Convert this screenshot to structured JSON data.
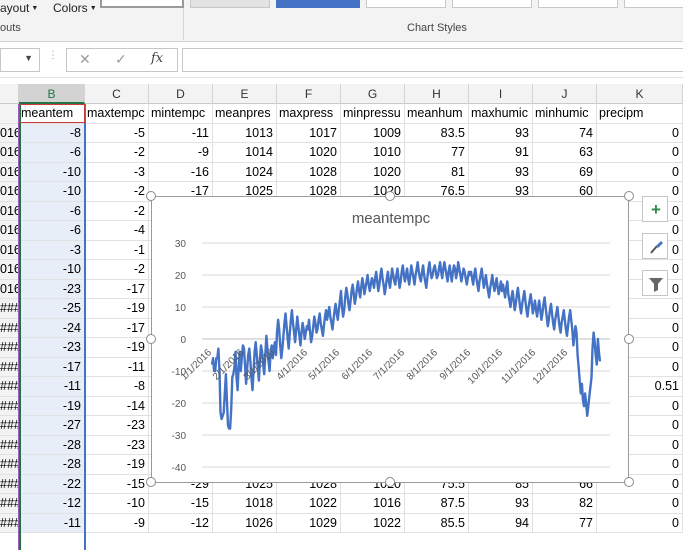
{
  "ribbon": {
    "layout_label": "ayout",
    "colors_label": "Colors",
    "left_group_label": "outs",
    "chart_styles_label": "Chart Styles"
  },
  "formula_bar": {
    "name_value": "",
    "formula_value": "",
    "cancel_icon": "close-icon",
    "enter_icon": "check-icon",
    "fx_label": "fx"
  },
  "columns": [
    "B",
    "C",
    "D",
    "E",
    "F",
    "G",
    "H",
    "I",
    "J",
    "K"
  ],
  "headers": [
    "meantem",
    "maxtempc",
    "mintempc",
    "meanpres",
    "maxpress",
    "minpressu",
    "meanhum",
    "maxhumic",
    "minhumic",
    "precipm"
  ],
  "rows": [
    {
      "row": "016",
      "v": [
        "-8",
        "-5",
        "-11",
        "1013",
        "1017",
        "1009",
        "83.5",
        "93",
        "74",
        "0"
      ]
    },
    {
      "row": "016",
      "v": [
        "-6",
        "-2",
        "-9",
        "1014",
        "1020",
        "1010",
        "77",
        "91",
        "63",
        "0"
      ]
    },
    {
      "row": "016",
      "v": [
        "-10",
        "-3",
        "-16",
        "1024",
        "1028",
        "1020",
        "81",
        "93",
        "69",
        "0"
      ]
    },
    {
      "row": "016",
      "v": [
        "-10",
        "-2",
        "-17",
        "1025",
        "1028",
        "1020",
        "76.5",
        "93",
        "60",
        "0"
      ]
    },
    {
      "row": "016",
      "v": [
        "-6",
        "-2",
        "",
        "",
        "",
        "",
        "",
        "",
        "",
        "0"
      ]
    },
    {
      "row": "016",
      "v": [
        "-6",
        "-4",
        "",
        "",
        "",
        "",
        "",
        "",
        "",
        "0"
      ]
    },
    {
      "row": "016",
      "v": [
        "-3",
        "-1",
        "",
        "",
        "",
        "",
        "",
        "",
        "",
        "0"
      ]
    },
    {
      "row": "016",
      "v": [
        "-10",
        "-2",
        "",
        "",
        "",
        "",
        "",
        "",
        "",
        "0"
      ]
    },
    {
      "row": "016",
      "v": [
        "-23",
        "-17",
        "",
        "",
        "",
        "",
        "",
        "",
        "",
        "0"
      ]
    },
    {
      "row": "###",
      "v": [
        "-25",
        "-19",
        "",
        "",
        "",
        "",
        "",
        "",
        "",
        "0"
      ]
    },
    {
      "row": "###",
      "v": [
        "-24",
        "-17",
        "",
        "",
        "",
        "",
        "",
        "",
        "",
        "0"
      ]
    },
    {
      "row": "###",
      "v": [
        "-23",
        "-19",
        "",
        "",
        "",
        "",
        "",
        "",
        "",
        "0"
      ]
    },
    {
      "row": "###",
      "v": [
        "-17",
        "-11",
        "",
        "",
        "",
        "",
        "",
        "",
        "",
        "0"
      ]
    },
    {
      "row": "###",
      "v": [
        "-11",
        "-8",
        "",
        "",
        "",
        "",
        "",
        "",
        "",
        "0.51"
      ]
    },
    {
      "row": "###",
      "v": [
        "-19",
        "-14",
        "",
        "",
        "",
        "",
        "",
        "",
        "",
        "0"
      ]
    },
    {
      "row": "###",
      "v": [
        "-27",
        "-23",
        "",
        "",
        "",
        "",
        "",
        "",
        "",
        "0"
      ]
    },
    {
      "row": "###",
      "v": [
        "-28",
        "-23",
        "",
        "",
        "",
        "",
        "",
        "",
        "",
        "0"
      ]
    },
    {
      "row": "###",
      "v": [
        "-28",
        "-19",
        "",
        "",
        "",
        "",
        "",
        "",
        "",
        "0"
      ]
    },
    {
      "row": "###",
      "v": [
        "-22",
        "-15",
        "-29",
        "1025",
        "1028",
        "1020",
        "75.5",
        "85",
        "66",
        "0"
      ]
    },
    {
      "row": "###",
      "v": [
        "-12",
        "-10",
        "-15",
        "1018",
        "1022",
        "1016",
        "87.5",
        "93",
        "82",
        "0"
      ]
    },
    {
      "row": "###",
      "v": [
        "-11",
        "-9",
        "-12",
        "1026",
        "1029",
        "1022",
        "85.5",
        "94",
        "77",
        "0"
      ]
    }
  ],
  "chart_data": {
    "type": "line",
    "title": "meantempc",
    "ylim": [
      -40,
      30
    ],
    "yticks": [
      30,
      20,
      10,
      0,
      -10,
      -20,
      -30,
      -40
    ],
    "xticks": [
      "1/1/2016",
      "2/1/2016",
      "3/1/2016",
      "4/1/2016",
      "5/1/2016",
      "6/1/2016",
      "7/1/2016",
      "8/1/2016",
      "9/1/2016",
      "10/1/2016",
      "11/1/2016",
      "12/1/2016"
    ],
    "grid": true,
    "color": "#4472c4",
    "series": [
      {
        "monthly_points": [
          {
            "month": "Jan",
            "values": [
              -8,
              -6,
              -10,
              -10,
              -6,
              -6,
              -3,
              -10,
              -23,
              -25,
              -24,
              -23,
              -17,
              -11,
              -19,
              -27,
              -28,
              -28,
              -22,
              -12,
              -11,
              -9,
              -4,
              -12,
              -16,
              -9,
              -4,
              -10,
              -6,
              -2
            ]
          },
          {
            "month": "Feb",
            "values": [
              -3,
              -8,
              -14,
              -9,
              -5,
              -3,
              -7,
              -12,
              -16,
              -10,
              -4,
              -1,
              -5,
              -9,
              -13,
              -6,
              -2,
              -4,
              -8,
              -11,
              -5,
              1,
              -3,
              -7,
              -10,
              -4,
              -2,
              -6,
              -3
            ]
          },
          {
            "month": "Mar",
            "values": [
              -1,
              -5,
              2,
              6,
              3,
              -2,
              -6,
              -3,
              1,
              5,
              8,
              4,
              0,
              -3,
              2,
              6,
              9,
              5,
              2,
              -1,
              3,
              7,
              4,
              1,
              -2,
              2,
              5,
              3,
              0,
              2,
              4
            ]
          },
          {
            "month": "Apr",
            "values": [
              3,
              6,
              2,
              -1,
              1,
              4,
              7,
              5,
              2,
              3,
              6,
              8,
              5,
              3,
              1,
              4,
              7,
              9,
              6,
              8,
              10,
              7,
              5,
              3,
              6,
              9,
              11,
              8,
              6,
              9
            ]
          },
          {
            "month": "May",
            "values": [
              12,
              15,
              10,
              7,
              9,
              13,
              16,
              14,
              11,
              9,
              12,
              15,
              17,
              14,
              11,
              13,
              16,
              18,
              15,
              13,
              16,
              19,
              17,
              14,
              16,
              18,
              20,
              17,
              15,
              17,
              19
            ]
          },
          {
            "month": "Jun",
            "values": [
              18,
              16,
              19,
              21,
              18,
              15,
              17,
              20,
              22,
              19,
              17,
              14,
              16,
              19,
              21,
              18,
              16,
              19,
              22,
              20,
              18,
              17,
              20,
              22,
              19,
              16,
              18,
              21,
              23,
              20
            ]
          },
          {
            "month": "Jul",
            "values": [
              18,
              20,
              22,
              19,
              17,
              20,
              23,
              21,
              19,
              17,
              20,
              22,
              24,
              21,
              19,
              18,
              21,
              23,
              20,
              18,
              16,
              19,
              22,
              24,
              21,
              19,
              20,
              22,
              23,
              21,
              19
            ]
          },
          {
            "month": "Aug",
            "values": [
              20,
              22,
              24,
              21,
              19,
              22,
              24,
              22,
              20,
              18,
              21,
              23,
              20,
              18,
              21,
              23,
              22,
              19,
              21,
              24,
              22,
              20,
              18,
              20,
              22,
              21,
              19,
              17,
              19,
              21,
              20
            ]
          },
          {
            "month": "Sep",
            "values": [
              21,
              19,
              17,
              20,
              22,
              19,
              17,
              15,
              18,
              20,
              22,
              19,
              16,
              18,
              20,
              17,
              15,
              13,
              16,
              18,
              20,
              17,
              15,
              17,
              19,
              16,
              14,
              16,
              18,
              15
            ]
          },
          {
            "month": "Oct",
            "values": [
              17,
              15,
              13,
              16,
              18,
              14,
              12,
              10,
              13,
              15,
              12,
              9,
              11,
              14,
              16,
              13,
              10,
              8,
              11,
              13,
              15,
              12,
              9,
              7,
              10,
              12,
              14,
              11,
              8,
              10,
              12
            ]
          },
          {
            "month": "Nov",
            "values": [
              9,
              7,
              10,
              12,
              9,
              6,
              8,
              11,
              13,
              10,
              7,
              4,
              6,
              9,
              11,
              8,
              5,
              3,
              6,
              8,
              10,
              7,
              4,
              2,
              5,
              7,
              9,
              6,
              3,
              1
            ]
          },
          {
            "month": "Dec",
            "values": [
              4,
              7,
              9,
              6,
              3,
              -2,
              1,
              4,
              2,
              -5,
              -9,
              -13,
              -17,
              -14,
              -19,
              -21,
              -17,
              -20,
              -24,
              -21,
              -18,
              -15,
              -12,
              -3,
              2,
              -1,
              -5,
              -8,
              0,
              -4,
              -7
            ]
          }
        ]
      }
    ]
  }
}
